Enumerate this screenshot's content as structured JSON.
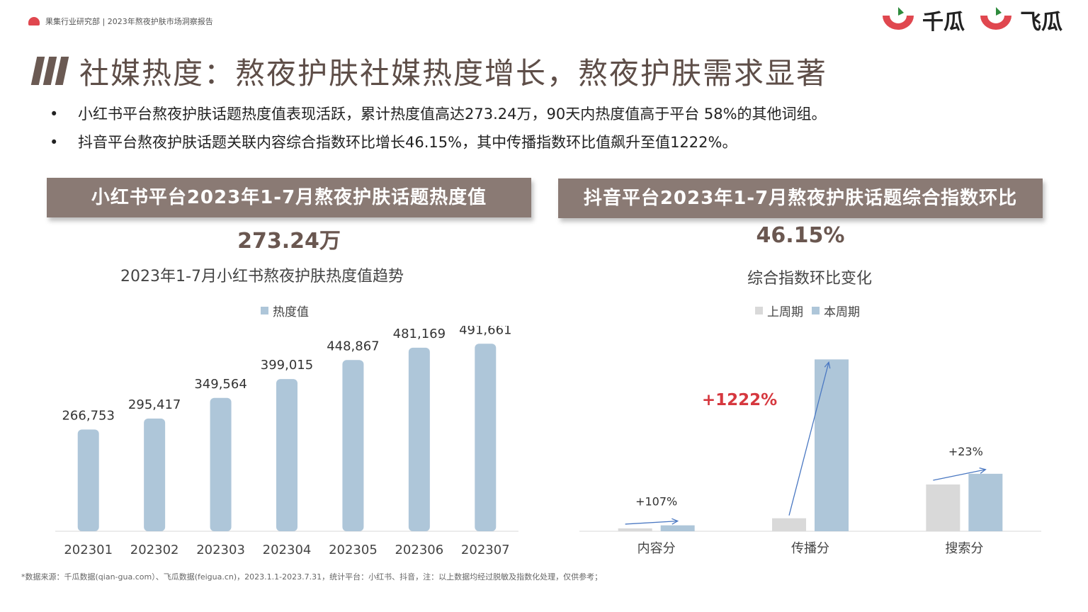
{
  "header": {
    "source_label": "果集行业研究部 | 2023年熬夜护肤市场洞察报告",
    "logo1_text": "千瓜",
    "logo2_text": "飞瓜",
    "accent": "#e0474f"
  },
  "title": "社媒热度：熬夜护肤社媒热度增长，熬夜护肤需求显著",
  "bullets": [
    "小红书平台熬夜护肤话题热度值表现活跃，累计热度值高达273.24万，90天内热度值高于平台 58%的其他词组。",
    "抖音平台熬夜护肤话题关联内容综合指数环比增长46.15%，其中传播指数环比值飙升至值1222%。"
  ],
  "left_panel": {
    "header": "小红书平台2023年1-7月熬夜护肤话题热度值",
    "big_value": "273.24万",
    "chart_title": "2023年1-7月小红书熬夜护肤热度值趋势"
  },
  "right_panel": {
    "header": "抖音平台2023年1-7月熬夜护肤话题综合指数环比",
    "big_value": "46.15%",
    "chart_title": "综合指数环比变化"
  },
  "footer": "*数据来源：千瓜数据(qian-gua.com）、飞瓜数据(feigua.cn)，2023.1.1-2023.7.31，统计平台：小红书、抖音，注：以上数据均经过脱敏及指数化处理，仅供参考；",
  "chart_data": [
    {
      "type": "bar",
      "categories": [
        "202301",
        "202302",
        "202303",
        "202304",
        "202305",
        "202306",
        "202307"
      ],
      "series": [
        {
          "name": "热度值",
          "values": [
            266753,
            295417,
            349564,
            399015,
            448867,
            481169,
            491661
          ],
          "color": "#aec6d9"
        }
      ],
      "data_labels": [
        "266,753",
        "295,417",
        "349,564",
        "399,015",
        "448,867",
        "481,169",
        "491,661"
      ],
      "legend_position": "top",
      "ylim": [
        0,
        520000
      ],
      "grid": false
    },
    {
      "type": "bar",
      "categories": [
        "内容分",
        "传播分",
        "搜索分"
      ],
      "series": [
        {
          "name": "上周期",
          "values": [
            1.5,
            6.8,
            24.5
          ],
          "color": "#d9d9d9"
        },
        {
          "name": "本周期",
          "values": [
            3.1,
            90,
            30.1
          ],
          "color": "#aec6d9"
        }
      ],
      "annotations": [
        "+107%",
        "+1222%",
        "+23%"
      ],
      "annotation_colors": [
        "#333333",
        "#d6383f",
        "#333333"
      ],
      "legend_position": "top",
      "ylim": [
        0,
        92
      ],
      "grid": false
    }
  ]
}
